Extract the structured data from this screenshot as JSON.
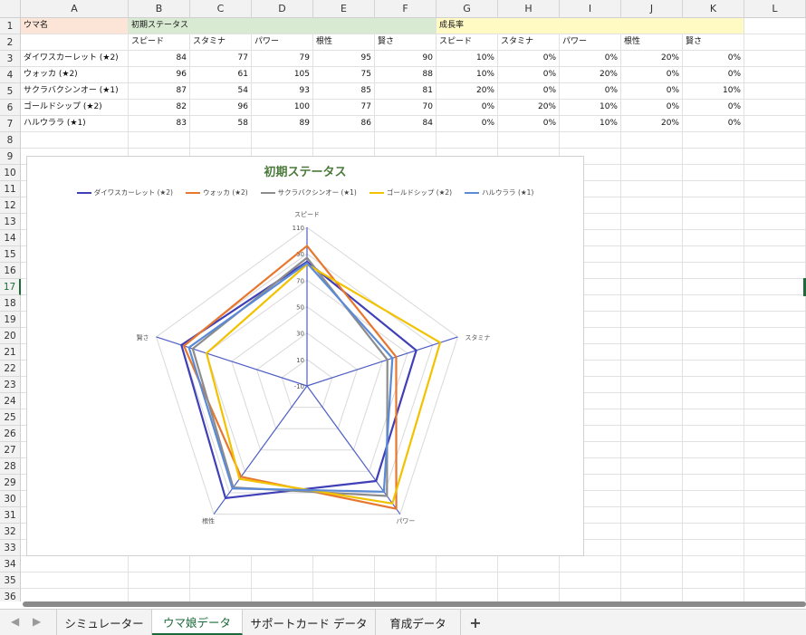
{
  "columns": [
    "A",
    "B",
    "C",
    "D",
    "E",
    "F",
    "G",
    "H",
    "I",
    "J",
    "K",
    "L"
  ],
  "rows": [
    "1",
    "2",
    "3",
    "4",
    "5",
    "6",
    "7",
    "8",
    "9",
    "10",
    "11",
    "12",
    "13",
    "14",
    "15",
    "16",
    "17",
    "18",
    "19",
    "20",
    "21",
    "22",
    "23",
    "24",
    "25",
    "26",
    "27",
    "28",
    "29",
    "30",
    "31",
    "32",
    "33",
    "34",
    "35",
    "36"
  ],
  "selected_row": "17",
  "header_row1": {
    "name": "ウマ名",
    "initial": "初期ステータス",
    "growth": "成長率"
  },
  "header_row2": [
    "スピード",
    "スタミナ",
    "パワー",
    "根性",
    "賢さ",
    "スピード",
    "スタミナ",
    "パワー",
    "根性",
    "賢さ"
  ],
  "table_rows": [
    {
      "name": "ダイワスカーレット (★2)",
      "initial": [
        "84",
        "77",
        "79",
        "95",
        "90"
      ],
      "growth": [
        "10%",
        "0%",
        "0%",
        "20%",
        "0%"
      ]
    },
    {
      "name": "ウォッカ (★2)",
      "initial": [
        "96",
        "61",
        "105",
        "75",
        "88"
      ],
      "growth": [
        "10%",
        "0%",
        "20%",
        "0%",
        "0%"
      ]
    },
    {
      "name": "サクラバクシンオー (★1)",
      "initial": [
        "87",
        "54",
        "93",
        "85",
        "81"
      ],
      "growth": [
        "20%",
        "0%",
        "0%",
        "0%",
        "10%"
      ]
    },
    {
      "name": "ゴールドシップ (★2)",
      "initial": [
        "82",
        "96",
        "100",
        "77",
        "70"
      ],
      "growth": [
        "0%",
        "20%",
        "10%",
        "0%",
        "0%"
      ]
    },
    {
      "name": "ハルウララ (★1)",
      "initial": [
        "83",
        "58",
        "89",
        "86",
        "84"
      ],
      "growth": [
        "0%",
        "0%",
        "10%",
        "20%",
        "0%"
      ]
    }
  ],
  "chart_data": {
    "type": "radar",
    "title": "初期ステータス",
    "axes": [
      "スピード",
      "スタミナ",
      "パワー",
      "根性",
      "賢さ"
    ],
    "rlim": [
      -10,
      110
    ],
    "ticks": [
      "110",
      "90",
      "70",
      "50",
      "30",
      "10",
      "-10"
    ],
    "series": [
      {
        "name": "ダイワスカーレット (★2)",
        "values": [
          84,
          77,
          79,
          95,
          90
        ],
        "color": "#3f3fb8"
      },
      {
        "name": "ウォッカ (★2)",
        "values": [
          96,
          61,
          105,
          75,
          88
        ],
        "color": "#e8772e"
      },
      {
        "name": "サクラバクシンオー (★1)",
        "values": [
          87,
          54,
          93,
          85,
          81
        ],
        "color": "#8c8c8c"
      },
      {
        "name": "ゴールドシップ (★2)",
        "values": [
          82,
          96,
          100,
          77,
          70
        ],
        "color": "#f2c200"
      },
      {
        "name": "ハルウララ (★1)",
        "values": [
          83,
          58,
          89,
          86,
          84
        ],
        "color": "#5b8ad6"
      }
    ],
    "legend_position": "top"
  },
  "tabs": [
    {
      "label": "シミュレーター",
      "active": false
    },
    {
      "label": "ウマ娘データ",
      "active": true
    },
    {
      "label": "サポートカード データ",
      "active": false
    },
    {
      "label": "育成データ",
      "active": false
    }
  ],
  "icons": {
    "prev": "chevron-left-icon",
    "next": "chevron-right-icon",
    "add": "plus-icon"
  },
  "add_tab_label": "+",
  "nav_prev": "◀",
  "nav_next": "▶"
}
